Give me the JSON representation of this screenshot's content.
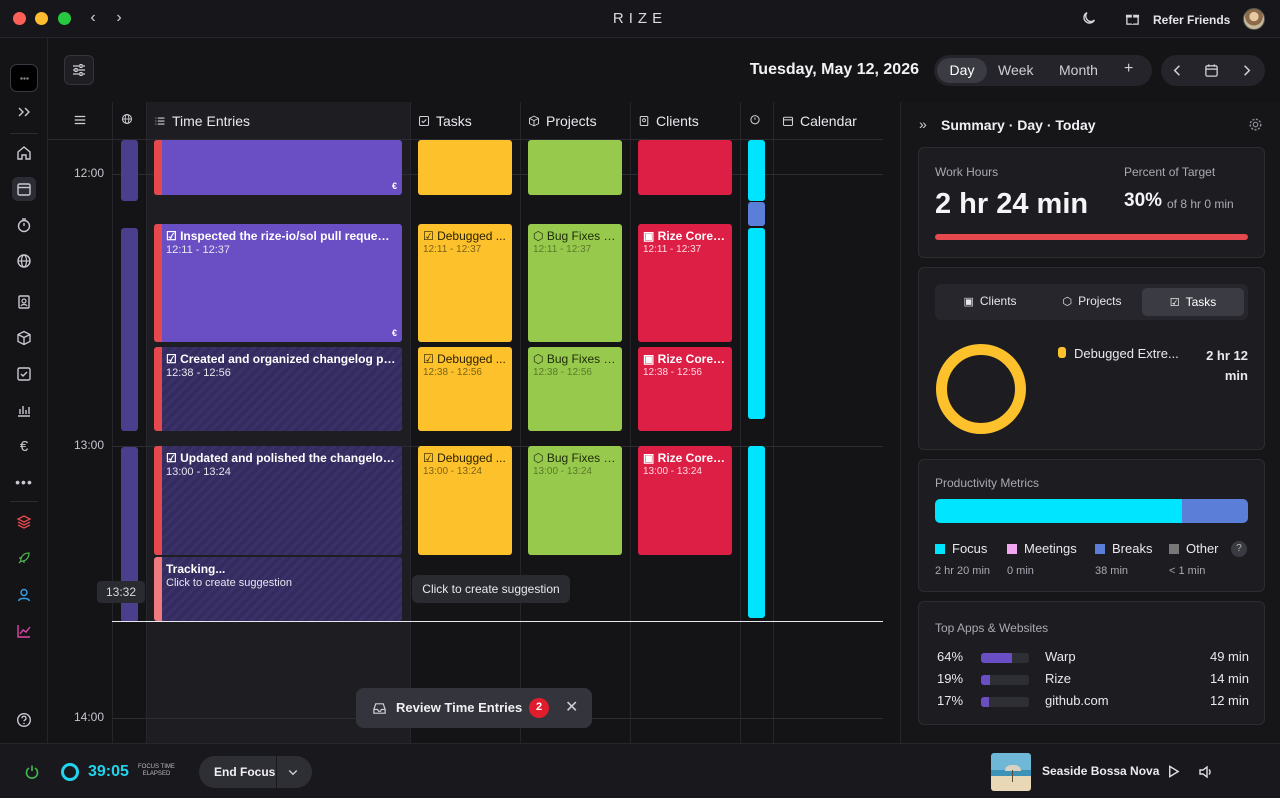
{
  "app": {
    "brand": "RIZE"
  },
  "titlebar": {
    "refer_label": "Refer Friends"
  },
  "header": {
    "date": "Tuesday, May 12, 2026",
    "views": [
      "Day",
      "Week",
      "Month"
    ],
    "add": "+"
  },
  "columns": {
    "time_entries": "Time Entries",
    "tasks": "Tasks",
    "projects": "Projects",
    "clients": "Clients",
    "calendar": "Calendar"
  },
  "hours": [
    "12:00",
    "13:00",
    "14:00"
  ],
  "entries": [
    {
      "title": "",
      "range": "",
      "currency": "€"
    },
    {
      "title": "Inspected the rize-io/sol pull request, tr...",
      "range": "12:11 - 12:37",
      "currency": "€"
    },
    {
      "title": "Created and organized changelog posts ...",
      "range": "12:38 - 12:56",
      "currency": ""
    },
    {
      "title": "Updated and polished the changelog for...",
      "range": "13:00 - 13:24",
      "currency": ""
    },
    {
      "title": "Tracking...",
      "range": "Click to create suggestion",
      "currency": ""
    }
  ],
  "task_label": "Debugged ...",
  "project_label": "Bug Fixes &...",
  "client_label": "Rize Core S...",
  "block_ranges": [
    "12:11 - 12:37",
    "12:38 - 12:56",
    "13:00 - 13:24"
  ],
  "now_time": "13:32",
  "tooltip": "Click to create suggestion",
  "review": {
    "label": "Review Time Entries",
    "count": "2"
  },
  "summary": {
    "title": "Summary · Day · Today",
    "work_hours_label": "Work Hours",
    "work_hours_value": "2 hr 24 min",
    "target_label": "Percent of Target",
    "target_value": "30%",
    "target_of": "of 8 hr 0 min",
    "target_progress": 0.3,
    "breakdown_tabs": [
      "Clients",
      "Projects",
      "Tasks"
    ],
    "top_task": {
      "name": "Debugged Extre...",
      "time_line1": "2 hr 12",
      "time_line2": "min",
      "color": "#fdc12c"
    },
    "productivity_title": "Productivity Metrics",
    "productivity": [
      {
        "label": "Focus",
        "value": "2 hr 20 min",
        "color": "#00e5ff",
        "fraction": 0.79
      },
      {
        "label": "Meetings",
        "value": "0 min",
        "color": "#f0a6f0",
        "fraction": 0
      },
      {
        "label": "Breaks",
        "value": "38 min",
        "color": "#5b7fd8",
        "fraction": 0.21
      },
      {
        "label": "Other",
        "value": "< 1 min",
        "color": "#777777",
        "fraction": 0
      }
    ],
    "help": "?",
    "apps_title": "Top Apps & Websites",
    "apps": [
      {
        "pct": "64%",
        "name": "Warp",
        "time": "49 min",
        "fraction": 0.64
      },
      {
        "pct": "19%",
        "name": "Rize",
        "time": "14 min",
        "fraction": 0.19
      },
      {
        "pct": "17%",
        "name": "github.com",
        "time": "12 min",
        "fraction": 0.17
      }
    ]
  },
  "bottom": {
    "timer": "39:05",
    "timer_caption_1": "FOCUS TIME",
    "timer_caption_2": "ELAPSED",
    "end_focus": "End Focus",
    "song": "Seaside Bossa Nova"
  }
}
